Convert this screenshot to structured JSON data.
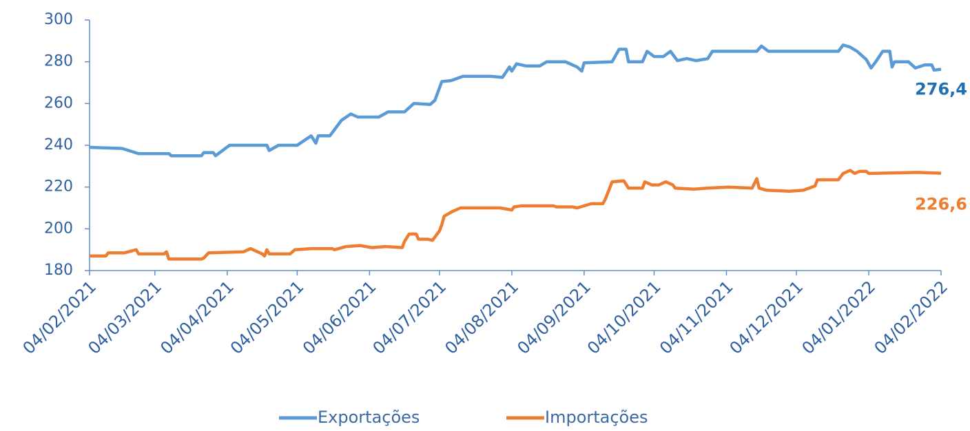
{
  "chart_data": {
    "type": "line",
    "xlim": [
      "04/02/2021",
      "04/02/2022"
    ],
    "xticks": [
      "04/02/2021",
      "04/03/2021",
      "04/04/2021",
      "04/05/2021",
      "04/06/2021",
      "04/07/2021",
      "04/08/2021",
      "04/09/2021",
      "04/10/2021",
      "04/11/2021",
      "04/12/2021",
      "04/01/2022",
      "04/02/2022"
    ],
    "ylim": [
      180,
      300
    ],
    "yticks": [
      180,
      200,
      220,
      240,
      260,
      280,
      300
    ],
    "grid": false,
    "legend": "bottom",
    "series": [
      {
        "name": "Exportações",
        "color": "#5b9bd5",
        "label_color": "#1f6fb4",
        "x": [
          "04/02/2021",
          "18/02/2021",
          "25/02/2021",
          "10/03/2021",
          "11/03/2021",
          "24/03/2021",
          "25/03/2021",
          "29/03/2021",
          "30/03/2021",
          "05/04/2021",
          "21/04/2021",
          "22/04/2021",
          "26/04/2021",
          "04/05/2021",
          "10/05/2021",
          "12/05/2021",
          "13/05/2021",
          "18/05/2021",
          "23/05/2021",
          "27/05/2021",
          "30/05/2021",
          "08/06/2021",
          "12/06/2021",
          "19/06/2021",
          "23/06/2021",
          "30/06/2021",
          "02/07/2021",
          "05/07/2021",
          "09/07/2021",
          "14/07/2021",
          "26/07/2021",
          "31/07/2021",
          "03/08/2021",
          "04/08/2021",
          "06/08/2021",
          "10/08/2021",
          "16/08/2021",
          "19/08/2021",
          "27/08/2021",
          "01/09/2021",
          "03/09/2021",
          "04/09/2021",
          "16/09/2021",
          "19/09/2021",
          "22/09/2021",
          "23/09/2021",
          "29/09/2021",
          "01/10/2021",
          "04/10/2021",
          "08/10/2021",
          "11/10/2021",
          "14/10/2021",
          "18/10/2021",
          "22/10/2021",
          "27/10/2021",
          "29/10/2021",
          "17/11/2021",
          "19/11/2021",
          "22/11/2021",
          "22/12/2021",
          "24/12/2021",
          "27/12/2021",
          "30/12/2021",
          "03/01/2022",
          "05/01/2022",
          "07/01/2022",
          "10/01/2022",
          "13/01/2022",
          "14/01/2022",
          "15/01/2022",
          "21/01/2022",
          "24/01/2022",
          "28/01/2022",
          "31/01/2022",
          "01/02/2022",
          "04/02/2022"
        ],
        "values": [
          239,
          238.5,
          236,
          236,
          235,
          235,
          236.5,
          236.5,
          235,
          240,
          240,
          237.5,
          240,
          240,
          244.5,
          241,
          244.5,
          244.5,
          252,
          255,
          253.5,
          253.5,
          256,
          256,
          260,
          259.5,
          261.5,
          270.5,
          271,
          273,
          273,
          272.5,
          277.5,
          275.5,
          279,
          278,
          278,
          280,
          280,
          277.5,
          275.5,
          279.5,
          280,
          286,
          286,
          280,
          280,
          285,
          282.5,
          282.5,
          285,
          280.5,
          281.5,
          280.5,
          281.5,
          285,
          285,
          287.5,
          285,
          285,
          288,
          287,
          285,
          281,
          277,
          280,
          285,
          285,
          277.5,
          280,
          280,
          277,
          278.5,
          278.5,
          276,
          276.4
        ],
        "value_labels": [
          null,
          null,
          null,
          null,
          null,
          null,
          null,
          null,
          null,
          null,
          null,
          null,
          null,
          null,
          null,
          null,
          null,
          null,
          null,
          null,
          null,
          null,
          null,
          null,
          null,
          null,
          null,
          null,
          null,
          null,
          null,
          null,
          null,
          null,
          null,
          null,
          null,
          null,
          null,
          null,
          null,
          null,
          null,
          null,
          null,
          null,
          null,
          null,
          null,
          null,
          null,
          null,
          null,
          null,
          null,
          null,
          null,
          null,
          null,
          null,
          null,
          null,
          null,
          null,
          null,
          null,
          null,
          null,
          null,
          null,
          null,
          null,
          null,
          null,
          null,
          "276,4"
        ]
      },
      {
        "name": "Importações",
        "color": "#ed7d31",
        "label_color": "#ed7d31",
        "x": [
          "04/02/2021",
          "11/02/2021",
          "12/02/2021",
          "19/02/2021",
          "24/02/2021",
          "25/02/2021",
          "08/03/2021",
          "09/03/2021",
          "10/03/2021",
          "24/03/2021",
          "25/03/2021",
          "27/03/2021",
          "11/04/2021",
          "14/04/2021",
          "17/04/2021",
          "19/04/2021",
          "20/04/2021",
          "21/04/2021",
          "22/04/2021",
          "01/05/2021",
          "03/05/2021",
          "10/05/2021",
          "19/05/2021",
          "20/05/2021",
          "25/05/2021",
          "31/05/2021",
          "05/06/2021",
          "11/06/2021",
          "18/06/2021",
          "19/06/2021",
          "21/06/2021",
          "24/06/2021",
          "25/06/2021",
          "29/06/2021",
          "01/07/2021",
          "04/07/2021",
          "05/07/2021",
          "06/07/2021",
          "09/07/2021",
          "13/07/2021",
          "30/07/2021",
          "04/08/2021",
          "05/08/2021",
          "08/08/2021",
          "22/08/2021",
          "23/08/2021",
          "30/08/2021",
          "01/09/2021",
          "04/09/2021",
          "07/09/2021",
          "12/09/2021",
          "13/09/2021",
          "16/09/2021",
          "21/09/2021",
          "23/09/2021",
          "29/09/2021",
          "30/09/2021",
          "03/10/2021",
          "06/10/2021",
          "09/10/2021",
          "12/10/2021",
          "13/10/2021",
          "21/10/2021",
          "27/10/2021",
          "05/11/2021",
          "15/11/2021",
          "17/11/2021",
          "18/11/2021",
          "21/11/2021",
          "01/12/2021",
          "07/12/2021",
          "12/12/2021",
          "13/12/2021",
          "22/12/2021",
          "24/12/2021",
          "27/12/2021",
          "29/12/2021",
          "31/12/2021",
          "03/01/2022",
          "04/01/2022",
          "25/01/2022",
          "04/02/2022"
        ],
        "values": [
          187,
          187,
          188.5,
          188.5,
          190,
          188,
          188,
          189,
          185.5,
          185.5,
          186,
          188.5,
          189,
          190.5,
          189,
          188,
          187,
          190,
          188,
          188,
          190,
          190.5,
          190.5,
          190,
          191.5,
          192,
          191,
          191.5,
          191,
          194,
          197.5,
          197.5,
          195,
          195,
          194.5,
          199,
          202,
          206,
          208,
          210,
          210,
          209,
          210.5,
          211,
          211,
          210.5,
          210.5,
          210,
          211,
          212,
          212,
          214,
          222.5,
          223,
          219.5,
          219.5,
          222.5,
          221,
          221,
          222.5,
          221,
          219.5,
          219,
          219.5,
          220,
          219.5,
          224,
          219.5,
          218.5,
          218,
          218.5,
          220.5,
          223.5,
          223.5,
          226.5,
          228,
          226.5,
          227.5,
          227.5,
          226.5,
          227,
          226.6
        ],
        "value_labels": [
          null,
          null,
          null,
          null,
          null,
          null,
          null,
          null,
          null,
          null,
          null,
          null,
          null,
          null,
          null,
          null,
          null,
          null,
          null,
          null,
          null,
          null,
          null,
          null,
          null,
          null,
          null,
          null,
          null,
          null,
          null,
          null,
          null,
          null,
          null,
          null,
          null,
          null,
          null,
          null,
          null,
          null,
          null,
          null,
          null,
          null,
          null,
          null,
          null,
          null,
          null,
          null,
          null,
          null,
          null,
          null,
          null,
          null,
          null,
          null,
          null,
          null,
          null,
          null,
          null,
          null,
          null,
          null,
          null,
          null,
          null,
          null,
          null,
          null,
          null,
          null,
          null,
          null,
          null,
          null,
          null,
          "226,6"
        ]
      }
    ]
  }
}
